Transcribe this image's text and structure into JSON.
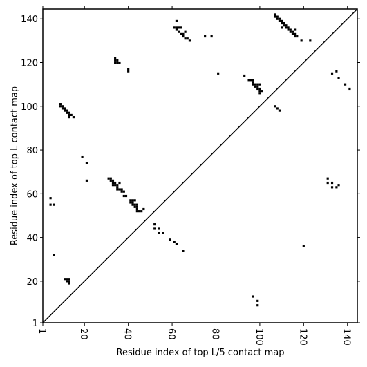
{
  "chart_data": {
    "type": "scatter",
    "xlabel": "Residue index of top L/5 contact map",
    "ylabel": "Residue index of top L contact map",
    "xlim": [
      1,
      144.5
    ],
    "ylim": [
      1,
      144.5
    ],
    "xticks": [
      1,
      20,
      40,
      60,
      80,
      100,
      120,
      140
    ],
    "yticks": [
      1,
      20,
      40,
      60,
      80,
      100,
      120,
      140
    ],
    "color": "#000000",
    "x": [
      62,
      61,
      62,
      63,
      64,
      62,
      63,
      64,
      65,
      66,
      65,
      66,
      67,
      68,
      75,
      78,
      81,
      34,
      34,
      35,
      34,
      35,
      36,
      40,
      40,
      9,
      9,
      10,
      10,
      11,
      11,
      12,
      12,
      13,
      13,
      14,
      13,
      15,
      19,
      21,
      21,
      31,
      32,
      32,
      33,
      33,
      34,
      33,
      34,
      35,
      35,
      36,
      35,
      36,
      37,
      37,
      38,
      38,
      39,
      41,
      42,
      43,
      41,
      42,
      42,
      43,
      44,
      43,
      44,
      44,
      44,
      45,
      46,
      47,
      52,
      52,
      54,
      54,
      56,
      59,
      61,
      62,
      65,
      4.5,
      4.5,
      6,
      6,
      11,
      12,
      13,
      12,
      13,
      13,
      107,
      107,
      108,
      108,
      109,
      109,
      110,
      110,
      111,
      111,
      112,
      112,
      113,
      113,
      114,
      114,
      115,
      116,
      115,
      116,
      116,
      117,
      110,
      119,
      123,
      93,
      95,
      96,
      97,
      97,
      97,
      98,
      99,
      100,
      99,
      99,
      100,
      100,
      101,
      100,
      98,
      107,
      108,
      109,
      133,
      135,
      136,
      139,
      141,
      131,
      131,
      133,
      133,
      135,
      136,
      120,
      97,
      99,
      99
    ],
    "y": [
      139,
      136,
      136,
      136,
      136,
      135,
      134,
      133,
      133,
      134,
      132,
      131,
      131,
      130,
      132,
      132,
      115,
      122,
      121,
      121,
      120,
      120,
      120,
      116,
      117,
      101,
      100,
      100,
      99,
      99,
      98,
      98,
      97,
      97,
      96,
      96,
      95,
      95,
      77,
      74,
      66,
      67,
      67,
      66,
      66,
      65,
      65,
      64,
      64,
      64,
      63,
      65,
      62,
      62,
      62,
      61,
      61,
      59,
      59,
      57,
      57,
      57,
      56,
      56,
      55,
      55,
      55,
      54,
      54,
      53,
      52,
      52,
      52,
      53,
      46,
      44,
      44,
      42,
      42,
      39,
      38,
      37,
      34,
      58,
      55,
      55,
      32,
      21,
      21,
      21,
      20,
      20,
      19,
      142,
      141,
      141,
      140,
      140,
      139,
      139,
      138,
      138,
      137,
      137,
      136,
      136,
      135,
      135,
      134,
      134,
      135,
      133,
      133,
      132,
      132,
      136,
      130,
      130,
      114,
      112,
      112,
      112,
      111,
      110,
      110,
      110,
      110,
      109,
      108,
      108,
      107,
      107,
      106,
      109,
      100,
      99,
      98,
      115,
      116,
      113,
      110,
      108,
      67,
      65,
      65,
      63,
      63,
      64,
      36,
      13,
      11,
      9
    ]
  }
}
